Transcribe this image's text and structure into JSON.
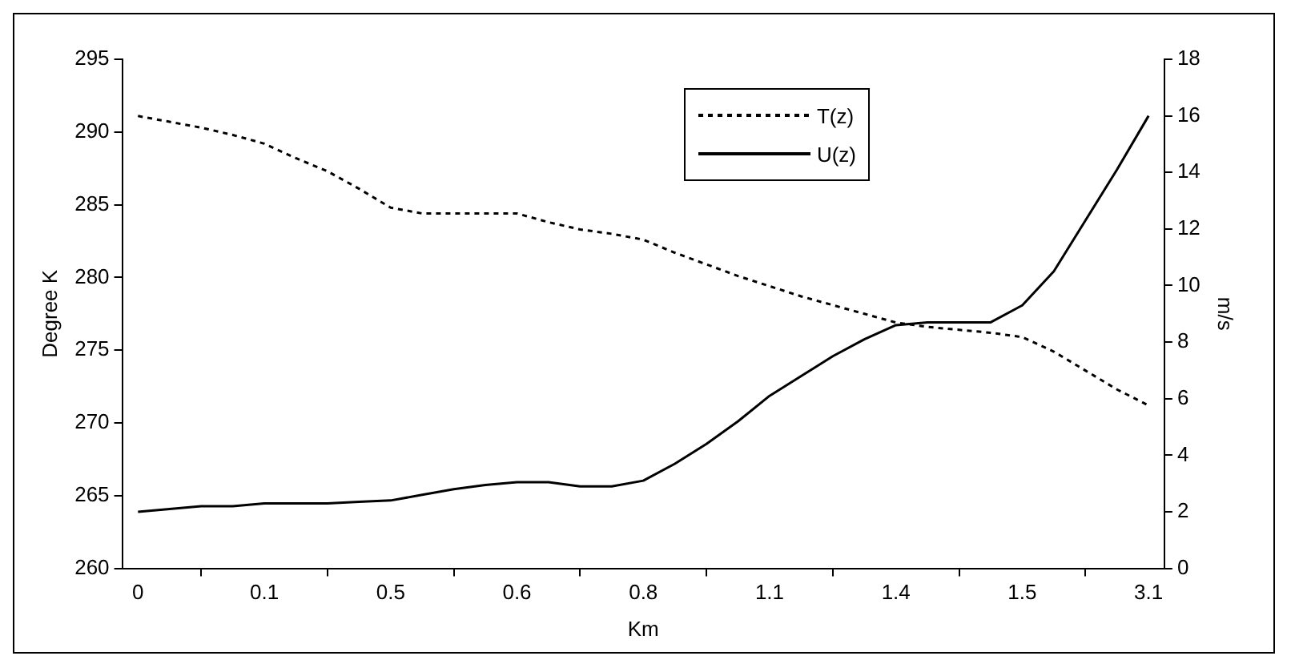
{
  "chart_data": {
    "type": "line",
    "xlabel": "Km",
    "ylabel": "Degree K",
    "y2label": "m/s",
    "categories": [
      "0",
      null,
      null,
      null,
      "0.1",
      null,
      null,
      null,
      "0.5",
      null,
      null,
      null,
      "0.6",
      null,
      null,
      null,
      "0.8",
      null,
      null,
      null,
      "1.1",
      null,
      null,
      null,
      "1.4",
      null,
      null,
      null,
      "1.5",
      null,
      null,
      null,
      "3.1"
    ],
    "series": [
      {
        "name": "T(z)",
        "color": "#000000",
        "line_style": "dotted",
        "values": [
          291.1,
          290.7,
          290.3,
          289.8,
          289.2,
          288.2,
          287.3,
          286.1,
          284.8,
          284.4,
          284.4,
          284.4,
          284.4,
          283.8,
          283.3,
          283.0,
          282.6,
          281.7,
          280.9,
          280.1,
          279.4,
          278.7,
          278.1,
          277.5,
          276.9,
          276.6,
          276.4,
          276.2,
          275.9,
          274.9,
          273.6,
          272.3,
          271.2
        ]
      },
      {
        "name": "U(z)",
        "color": "#000000",
        "line_style": "solid",
        "axis": "y2",
        "values": [
          2.0,
          2.1,
          2.2,
          2.2,
          2.3,
          2.3,
          2.3,
          2.35,
          2.4,
          2.6,
          2.8,
          2.95,
          3.05,
          3.05,
          2.9,
          2.9,
          3.1,
          3.7,
          4.4,
          5.2,
          6.1,
          6.8,
          7.5,
          8.1,
          8.6,
          8.7,
          8.7,
          8.7,
          9.3,
          10.5,
          12.3,
          14.1,
          16.0
        ]
      }
    ],
    "ylim": [
      260,
      295
    ],
    "yticks": [
      260,
      265,
      270,
      275,
      280,
      285,
      290,
      295
    ],
    "y2lim": [
      0,
      18
    ],
    "y2ticks": [
      0,
      2,
      4,
      6,
      8,
      10,
      12,
      14,
      16,
      18
    ],
    "grid": false,
    "legend": "top right"
  }
}
